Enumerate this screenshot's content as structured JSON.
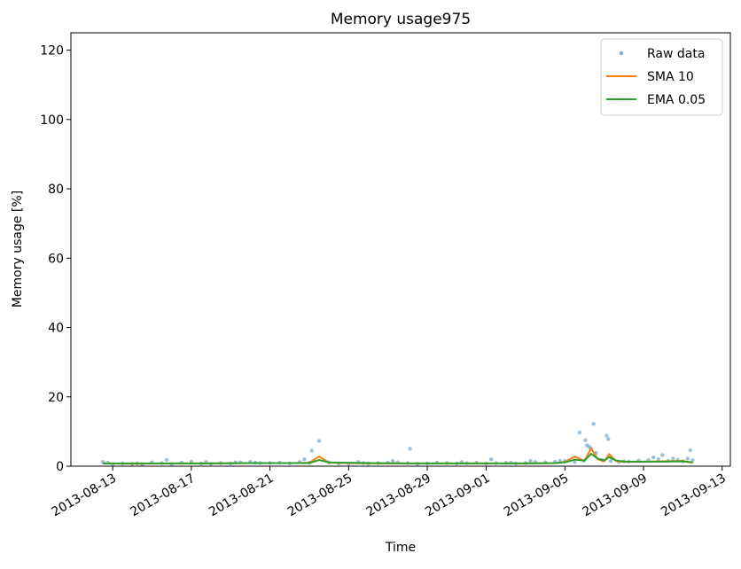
{
  "chart_data": {
    "type": "line",
    "title": "Memory usage975",
    "xlabel": "Time",
    "ylabel": "Memory usage [%]",
    "x_range": [
      "2013-08-10T21:00",
      "2013-09-13T10:00"
    ],
    "ylim": [
      0,
      125
    ],
    "x_ticks": [
      "2013-08-13",
      "2013-08-17",
      "2013-08-21",
      "2013-08-25",
      "2013-08-29",
      "2013-09-01",
      "2013-09-05",
      "2013-09-09",
      "2013-09-13"
    ],
    "y_ticks": [
      0,
      20,
      40,
      60,
      80,
      100,
      120
    ],
    "grid": false,
    "legend_position": "top-right",
    "colors": {
      "raw": "#1f77b4",
      "sma": "#ff7f0e",
      "ema": "#2ca02c"
    },
    "series": [
      {
        "name": "Raw data",
        "style": "points",
        "x": [
          "2013-08-12T12:00",
          "2013-08-13T00:00",
          "2013-08-13T12:00",
          "2013-08-14T00:00",
          "2013-08-14T12:00",
          "2013-08-15T00:00",
          "2013-08-15T12:00",
          "2013-08-16T00:00",
          "2013-08-16T12:00",
          "2013-08-17T00:00",
          "2013-08-17T12:00",
          "2013-08-18T00:00",
          "2013-08-18T12:00",
          "2013-08-19T00:00",
          "2013-08-19T12:00",
          "2013-08-20T00:00",
          "2013-08-20T12:00",
          "2013-08-21T00:00",
          "2013-08-21T12:00",
          "2013-08-22T00:00",
          "2013-08-22T12:00",
          "2013-08-23T00:00",
          "2013-08-23T12:00",
          "2013-08-24T00:00",
          "2013-08-24T12:00",
          "2013-08-25T00:00",
          "2013-08-25T12:00",
          "2013-08-26T00:00",
          "2013-08-26T12:00",
          "2013-08-27T00:00",
          "2013-08-27T12:00",
          "2013-08-28T00:00",
          "2013-08-28T12:00",
          "2013-08-29T00:00",
          "2013-08-29T12:00",
          "2013-08-30T00:00",
          "2013-08-30T12:00",
          "2013-08-31T00:00",
          "2013-08-31T12:00",
          "2013-09-01T00:00",
          "2013-09-01T12:00",
          "2013-09-02T00:00",
          "2013-09-02T12:00",
          "2013-09-03T00:00",
          "2013-09-03T12:00",
          "2013-09-04T00:00",
          "2013-09-04T12:00",
          "2013-09-05T00:00",
          "2013-09-05T12:00",
          "2013-09-05T23:00",
          "2013-09-06T08:00",
          "2013-09-06T14:00",
          "2013-09-06T22:00",
          "2013-09-07T08:00",
          "2013-09-07T18:00",
          "2013-09-08T06:00",
          "2013-09-08T18:00",
          "2013-09-09T06:00",
          "2013-09-09T18:00",
          "2013-09-10T06:00",
          "2013-09-10T18:00",
          "2013-09-11T00:00",
          "2013-09-11T06:00",
          "2013-09-11T12:00",
          "2013-08-12T18:00",
          "2013-08-15T18:00",
          "2013-08-17T18:00",
          "2013-08-20T06:00",
          "2013-08-22T18:00",
          "2013-08-23T03:00",
          "2013-08-27T06:00",
          "2013-08-28T03:00",
          "2013-08-30T18:00",
          "2013-09-01T06:00",
          "2013-09-04T18:00",
          "2013-09-05T18:00",
          "2013-09-06T01:00",
          "2013-09-06T03:00",
          "2013-09-06T06:00",
          "2013-09-06T11:00",
          "2013-09-07T03:00",
          "2013-09-07T05:00",
          "2013-09-09T12:00",
          "2013-09-09T23:00",
          "2013-09-10T12:00",
          "2013-09-11T09:00",
          "2013-08-25T18:00",
          "2013-08-19T06:00",
          "2013-08-14T06:00",
          "2013-09-03T06:00",
          "2013-09-08T00:00",
          "2013-09-02T06:00"
        ],
        "y": [
          1.2,
          0.6,
          0.8,
          0.7,
          0.5,
          1.1,
          0.9,
          0.6,
          1.0,
          1.3,
          0.8,
          0.7,
          0.9,
          0.8,
          1.1,
          1.2,
          0.9,
          0.9,
          1.0,
          0.8,
          1.2,
          1.0,
          7.3,
          1.1,
          0.8,
          0.7,
          1.2,
          0.8,
          0.9,
          1.0,
          1.1,
          0.9,
          0.7,
          0.8,
          1.0,
          0.9,
          0.8,
          0.9,
          1.0,
          0.8,
          0.9,
          1.0,
          0.8,
          0.9,
          1.2,
          1.1,
          1.3,
          1.5,
          1.2,
          1.6,
          5.0,
          3.8,
          1.8,
          1.5,
          1.2,
          1.3,
          1.6,
          1.8,
          2.0,
          1.5,
          1.8,
          1.4,
          2.2,
          1.7,
          1.0,
          1.8,
          1.2,
          1.0,
          2.0,
          4.5,
          1.5,
          5.0,
          1.2,
          2.0,
          1.5,
          9.7,
          7.5,
          6.0,
          5.5,
          12.2,
          8.8,
          7.8,
          2.5,
          3.2,
          2.2,
          4.6,
          0.9,
          1.1,
          0.8,
          1.5,
          1.4,
          1.0
        ]
      },
      {
        "name": "SMA 10",
        "style": "line",
        "x": [
          "2013-08-12T12:00",
          "2013-08-14T00:00",
          "2013-08-16T00:00",
          "2013-08-18T00:00",
          "2013-08-20T00:00",
          "2013-08-22T00:00",
          "2013-08-23T00:00",
          "2013-08-23T12:00",
          "2013-08-24T00:00",
          "2013-08-26T00:00",
          "2013-08-28T00:00",
          "2013-08-30T00:00",
          "2013-09-01T00:00",
          "2013-09-03T00:00",
          "2013-09-04T12:00",
          "2013-09-05T00:00",
          "2013-09-05T12:00",
          "2013-09-06T00:00",
          "2013-09-06T08:00",
          "2013-09-06T16:00",
          "2013-09-07T00:00",
          "2013-09-07T06:00",
          "2013-09-07T14:00",
          "2013-09-08T00:00",
          "2013-09-09T00:00",
          "2013-09-10T00:00",
          "2013-09-11T00:00",
          "2013-09-11T12:00"
        ],
        "y": [
          0.8,
          0.7,
          0.8,
          0.8,
          0.9,
          0.9,
          1.0,
          2.8,
          1.0,
          0.8,
          0.8,
          0.8,
          0.8,
          0.8,
          0.9,
          1.2,
          2.8,
          1.5,
          5.2,
          2.0,
          1.4,
          3.5,
          1.5,
          1.2,
          1.3,
          1.4,
          1.5,
          1.0
        ]
      },
      {
        "name": "EMA 0.05",
        "style": "line",
        "x": [
          "2013-08-12T12:00",
          "2013-08-14T00:00",
          "2013-08-16T00:00",
          "2013-08-18T00:00",
          "2013-08-20T00:00",
          "2013-08-22T00:00",
          "2013-08-23T00:00",
          "2013-08-23T12:00",
          "2013-08-24T00:00",
          "2013-08-26T00:00",
          "2013-08-28T00:00",
          "2013-08-30T00:00",
          "2013-09-01T00:00",
          "2013-09-03T00:00",
          "2013-09-04T12:00",
          "2013-09-05T00:00",
          "2013-09-05T12:00",
          "2013-09-06T00:00",
          "2013-09-06T08:00",
          "2013-09-06T16:00",
          "2013-09-07T00:00",
          "2013-09-07T06:00",
          "2013-09-07T14:00",
          "2013-09-08T00:00",
          "2013-09-09T00:00",
          "2013-09-10T00:00",
          "2013-09-11T00:00",
          "2013-09-11T12:00"
        ],
        "y": [
          0.8,
          0.8,
          0.8,
          0.8,
          0.9,
          0.9,
          0.9,
          1.8,
          1.1,
          0.9,
          0.8,
          0.8,
          0.8,
          0.8,
          0.9,
          1.1,
          1.9,
          1.6,
          3.6,
          2.2,
          1.6,
          2.6,
          1.7,
          1.3,
          1.3,
          1.3,
          1.4,
          1.1
        ]
      }
    ]
  }
}
